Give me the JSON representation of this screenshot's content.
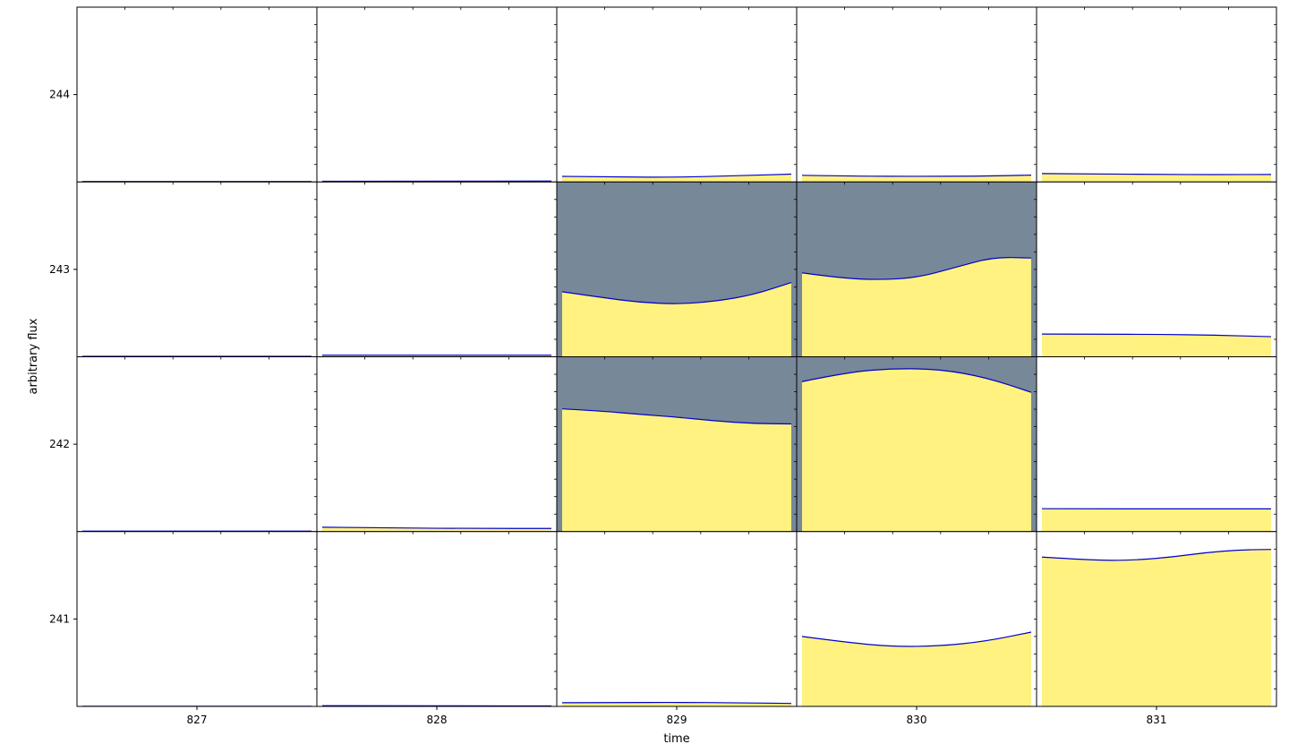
{
  "chart_data": {
    "type": "area",
    "title": "",
    "xlabel": "time",
    "ylabel": "arbitrary flux",
    "layout": "4 rows x 5 columns of panels; each row spans one unit of flux, each column one day",
    "row_centers": [
      244,
      243,
      242,
      241
    ],
    "col_centers": [
      827,
      828,
      829,
      830,
      831
    ],
    "x_ticks": [
      "827",
      "828",
      "829",
      "830",
      "831"
    ],
    "y_ticks": [
      "244",
      "243",
      "242",
      "241"
    ],
    "colors": {
      "fill": "#fff280",
      "line": "#0000cc",
      "background_active": "#778899",
      "background_empty": "#ffffff",
      "axes": "#000000"
    },
    "panels": [
      {
        "row": 244,
        "col": 827,
        "shaded": false,
        "curve": [
          0.003,
          0.003,
          0.003
        ]
      },
      {
        "row": 244,
        "col": 828,
        "shaded": false,
        "curve": [
          0.004,
          0.004,
          0.005
        ]
      },
      {
        "row": 244,
        "col": 829,
        "shaded": false,
        "curve": [
          0.032,
          0.028,
          0.027,
          0.035,
          0.045
        ]
      },
      {
        "row": 244,
        "col": 830,
        "shaded": false,
        "curve": [
          0.038,
          0.033,
          0.032,
          0.033,
          0.039
        ]
      },
      {
        "row": 244,
        "col": 831,
        "shaded": false,
        "curve": [
          0.048,
          0.046,
          0.043,
          0.042,
          0.043
        ]
      },
      {
        "row": 243,
        "col": 827,
        "shaded": false,
        "curve": [
          0.003,
          0.003,
          0.003
        ]
      },
      {
        "row": 243,
        "col": 828,
        "shaded": false,
        "curve": [
          0.009,
          0.009,
          0.009
        ]
      },
      {
        "row": 243,
        "col": 829,
        "shaded": true,
        "curve": [
          0.372,
          0.34,
          0.312,
          0.301,
          0.317,
          0.354,
          0.425
        ]
      },
      {
        "row": 243,
        "col": 830,
        "shaded": true,
        "curve": [
          0.48,
          0.45,
          0.44,
          0.452,
          0.51,
          0.57,
          0.565
        ]
      },
      {
        "row": 243,
        "col": 831,
        "shaded": false,
        "curve": [
          0.13,
          0.129,
          0.128,
          0.124,
          0.115
        ]
      },
      {
        "row": 242,
        "col": 827,
        "shaded": false,
        "curve": [
          0.003,
          0.003,
          0.003
        ]
      },
      {
        "row": 242,
        "col": 828,
        "shaded": false,
        "curve": [
          0.025,
          0.02,
          0.018,
          0.018
        ]
      },
      {
        "row": 242,
        "col": 829,
        "shaded": true,
        "curve": [
          0.702,
          0.69,
          0.671,
          0.655,
          0.633,
          0.618,
          0.616
        ]
      },
      {
        "row": 242,
        "col": 830,
        "shaded": true,
        "curve": [
          0.858,
          0.912,
          0.933,
          0.929,
          0.883,
          0.797
        ]
      },
      {
        "row": 242,
        "col": 831,
        "shaded": false,
        "curve": [
          0.131,
          0.13,
          0.13,
          0.13,
          0.13
        ]
      },
      {
        "row": 241,
        "col": 827,
        "shaded": false,
        "curve": [
          0.001,
          0.001,
          0.001
        ]
      },
      {
        "row": 241,
        "col": 828,
        "shaded": false,
        "curve": [
          0.004,
          0.004,
          0.003,
          0.003
        ]
      },
      {
        "row": 241,
        "col": 829,
        "shaded": false,
        "curve": [
          0.021,
          0.022,
          0.023,
          0.021,
          0.017
        ]
      },
      {
        "row": 241,
        "col": 830,
        "shaded": false,
        "curve": [
          0.4,
          0.365,
          0.342,
          0.345,
          0.372,
          0.425
        ]
      },
      {
        "row": 241,
        "col": 831,
        "shaded": false,
        "curve": [
          0.854,
          0.843,
          0.834,
          0.839,
          0.855,
          0.88,
          0.895,
          0.898
        ]
      }
    ]
  }
}
